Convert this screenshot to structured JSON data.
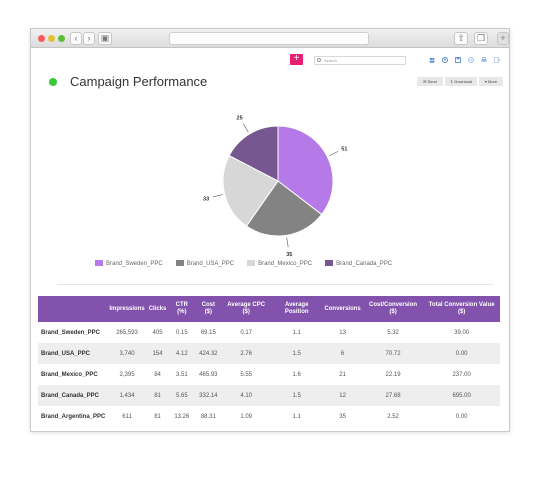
{
  "header": {
    "search_placeholder": "Search",
    "title": "Campaign Performance",
    "add_label": "+",
    "actions": {
      "send": "Send",
      "download": "Download",
      "more": "More"
    }
  },
  "chart_data": {
    "type": "pie",
    "labels": [
      "Brand_Sweden_PPC",
      "Brand_USA_PPC",
      "Brand_Mexico_PPC",
      "Brand_Canada_PPC"
    ],
    "values": [
      51,
      35,
      33,
      25
    ],
    "colors": [
      "#b57ae8",
      "#838383",
      "#d7d7d7",
      "#77578f"
    ]
  },
  "table": {
    "headers": [
      "",
      "Impressions",
      "Clicks",
      "CTR (%)",
      "Cost ($)",
      "Average CPC ($)",
      "Average Position",
      "Conversions",
      "Cost/Conversion ($)",
      "Total Conversion Value ($)"
    ],
    "rows": [
      [
        "Brand_Sweden_PPC",
        "265,593",
        "405",
        "0.15",
        "69.15",
        "0.17",
        "1.1",
        "13",
        "5.32",
        "39.00"
      ],
      [
        "Brand_USA_PPC",
        "3,740",
        "154",
        "4.12",
        "424.32",
        "2.76",
        "1.5",
        "6",
        "70.72",
        "0.00"
      ],
      [
        "Brand_Mexico_PPC",
        "2,395",
        "84",
        "3.51",
        "465.93",
        "5.55",
        "1.6",
        "21",
        "22.19",
        "237.00"
      ],
      [
        "Brand_Canada_PPC",
        "1,434",
        "81",
        "5.65",
        "332.14",
        "4.10",
        "1.5",
        "12",
        "27.68",
        "695.00"
      ],
      [
        "Brand_Argentina_PPC",
        "611",
        "81",
        "13.26",
        "88.31",
        "1.09",
        "1.1",
        "35",
        "2.52",
        "0.00"
      ]
    ]
  }
}
